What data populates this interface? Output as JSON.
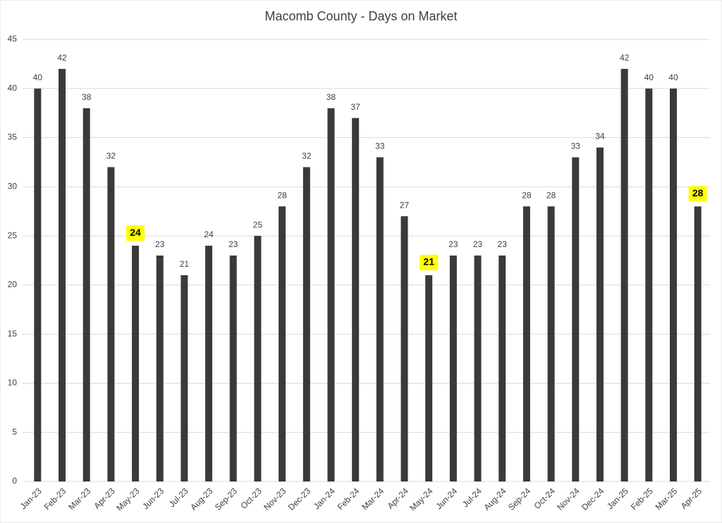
{
  "chart_data": {
    "type": "bar",
    "title": "Macomb County - Days on Market",
    "categories": [
      "Jan-23",
      "Feb-23",
      "Mar-23",
      "Apr-23",
      "May-23",
      "Jun-23",
      "Jul-23",
      "Aug-23",
      "Sep-23",
      "Oct-23",
      "Nov-23",
      "Dec-23",
      "Jan-24",
      "Feb-24",
      "Mar-24",
      "Apr-24",
      "May-24",
      "Jun-24",
      "Jul-24",
      "Aug-24",
      "Sep-24",
      "Oct-24",
      "Nov-24",
      "Dec-24",
      "Jan-25",
      "Feb-25",
      "Mar-25",
      "Apr-25"
    ],
    "values": [
      40,
      42,
      38,
      32,
      24,
      23,
      21,
      24,
      23,
      25,
      28,
      32,
      38,
      37,
      33,
      27,
      21,
      23,
      23,
      23,
      28,
      28,
      33,
      34,
      42,
      40,
      40,
      28
    ],
    "color": "#3a3a38",
    "highlight_categories": [
      "May-23",
      "May-24",
      "Apr-25"
    ],
    "highlight_color": "#ffff00",
    "ylim": [
      0,
      45
    ],
    "yticks": [
      0,
      5,
      10,
      15,
      20,
      25,
      30,
      35,
      40,
      45
    ],
    "grid": true
  }
}
